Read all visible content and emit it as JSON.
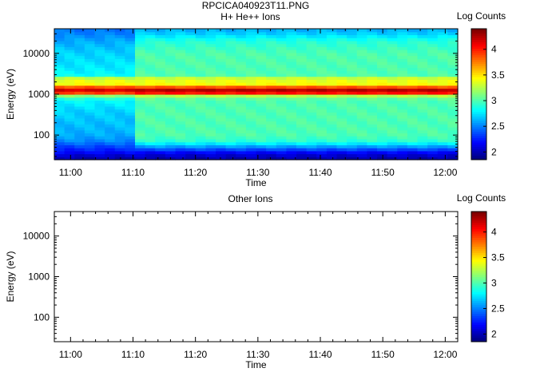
{
  "figure_title": "RPCICA040923T11.PNG",
  "chart_data": [
    {
      "type": "heatmap",
      "title": "H+ He++ Ions",
      "xlabel": "Time",
      "ylabel": "Energy (eV)",
      "x_ticks": [
        "11:00",
        "11:10",
        "11:20",
        "11:30",
        "11:40",
        "11:50",
        "12:00"
      ],
      "x_tick_minutes": [
        0,
        10,
        20,
        30,
        40,
        50,
        60
      ],
      "xlim_minutes": [
        -2.6,
        62.0
      ],
      "y_scale": "log",
      "y_ticks": [
        "100",
        "1000",
        "10000"
      ],
      "y_tick_values": [
        100,
        1000,
        10000
      ],
      "ylim": [
        25,
        40000
      ],
      "colorbar_label": "Log Counts",
      "colorbar_ticks": [
        "2",
        "2.5",
        "3",
        "3.5",
        "4"
      ],
      "colorbar_tick_values": [
        2,
        2.5,
        3,
        3.5,
        4
      ],
      "colorbar_range": [
        1.85,
        4.4
      ],
      "colormap": [
        "#00007f",
        "#0000ff",
        "#007fff",
        "#00ffff",
        "#7fff7f",
        "#ffff00",
        "#ff7f00",
        "#ff0000",
        "#7f0000"
      ],
      "energy_profile": {
        "energy_eV": [
          25,
          30,
          35,
          40,
          50,
          60,
          70,
          100,
          200,
          400,
          700,
          900,
          1000,
          1200,
          1400,
          1700,
          2000,
          2300,
          2700,
          3000,
          5000,
          10000,
          20000,
          30000,
          40000
        ],
        "log_counts_early": [
          1.95,
          2.0,
          2.1,
          2.2,
          2.3,
          2.4,
          2.5,
          2.6,
          2.65,
          2.7,
          2.8,
          3.0,
          3.7,
          4.2,
          4.15,
          3.5,
          3.3,
          3.5,
          3.1,
          2.8,
          2.75,
          2.7,
          2.6,
          2.5,
          2.45
        ],
        "log_counts_late": [
          1.95,
          2.0,
          2.1,
          2.2,
          2.5,
          2.7,
          2.9,
          3.0,
          3.0,
          3.0,
          3.0,
          3.1,
          3.8,
          4.35,
          4.15,
          3.5,
          3.3,
          3.5,
          3.15,
          3.0,
          3.0,
          3.0,
          2.9,
          2.7,
          2.6
        ]
      },
      "transition_minutes": 10.5
    },
    {
      "type": "heatmap",
      "title": "Other Ions",
      "xlabel": "Time",
      "ylabel": "Energy (eV)",
      "x_ticks": [
        "11:00",
        "11:10",
        "11:20",
        "11:30",
        "11:40",
        "11:50",
        "12:00"
      ],
      "x_tick_minutes": [
        0,
        10,
        20,
        30,
        40,
        50,
        60
      ],
      "xlim_minutes": [
        -2.6,
        62.0
      ],
      "y_scale": "log",
      "y_ticks": [
        "100",
        "1000",
        "10000"
      ],
      "y_tick_values": [
        100,
        1000,
        10000
      ],
      "ylim": [
        25,
        40000
      ],
      "colorbar_label": "Log Counts",
      "colorbar_ticks": [
        "2",
        "2.5",
        "3",
        "3.5",
        "4"
      ],
      "colorbar_tick_values": [
        2,
        2.5,
        3,
        3.5,
        4
      ],
      "colorbar_range": [
        1.85,
        4.4
      ],
      "empty": true
    }
  ]
}
